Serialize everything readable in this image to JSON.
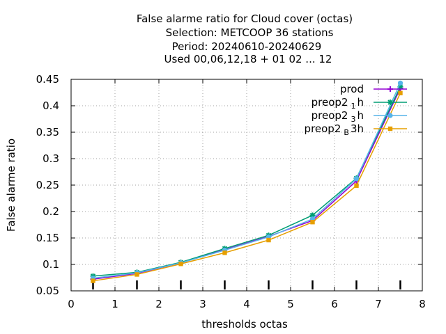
{
  "chart_data": {
    "type": "line",
    "title_lines": [
      "False alarme ratio  for Cloud cover (octas)",
      "Selection: METCOOP     36 stations",
      "Period: 20240610-20240629",
      "Used  00,06,12,18 + 01 02 ... 12"
    ],
    "xlabel": "thresholds octas",
    "ylabel": "False alarme ratio",
    "xlim": [
      0,
      8
    ],
    "ylim": [
      0.05,
      0.45
    ],
    "xticks": [
      0,
      1,
      2,
      3,
      4,
      5,
      6,
      7,
      8
    ],
    "xtick_labels": [
      "0",
      "1",
      "2",
      "3",
      "4",
      "5",
      "6",
      "7",
      "8"
    ],
    "yticks": [
      0.05,
      0.1,
      0.15,
      0.2,
      0.25,
      0.3,
      0.35,
      0.4,
      0.45
    ],
    "ytick_labels": [
      "0.05",
      "0.1",
      "0.15",
      "0.2",
      "0.25",
      "0.3",
      "0.35",
      "0.4",
      "0.45"
    ],
    "grid": true,
    "legend_position": "top-right",
    "threshold_markers": [
      0.5,
      1.5,
      2.5,
      3.5,
      4.5,
      5.5,
      6.5,
      7.5
    ],
    "x": [
      0.5,
      1.5,
      2.5,
      3.5,
      4.5,
      5.5,
      6.5,
      7.5
    ],
    "series": [
      {
        "name": "prod",
        "legend_base": "prod",
        "legend_sub": "",
        "legend_suffix": "",
        "color": "#9400d3",
        "marker": "plus",
        "values": [
          0.072,
          0.083,
          0.103,
          0.128,
          0.153,
          0.183,
          0.258,
          0.433
        ]
      },
      {
        "name": "preop2 1 h",
        "legend_base": "preop2",
        "legend_sub": "1",
        "legend_suffix": "h",
        "color": "#009e73",
        "marker": "star",
        "values": [
          0.078,
          0.085,
          0.104,
          0.13,
          0.155,
          0.193,
          0.263,
          0.436
        ]
      },
      {
        "name": "preop2 3 h",
        "legend_base": "preop2",
        "legend_sub": "3",
        "legend_suffix": "h",
        "color": "#56b4e9",
        "marker": "circle",
        "values": [
          0.074,
          0.084,
          0.103,
          0.127,
          0.152,
          0.186,
          0.262,
          0.443
        ]
      },
      {
        "name": "preop2 B 3h",
        "legend_base": "preop2",
        "legend_sub": "B",
        "legend_suffix": "3h",
        "color": "#e69f00",
        "marker": "square",
        "values": [
          0.069,
          0.081,
          0.101,
          0.122,
          0.146,
          0.18,
          0.249,
          0.424
        ]
      }
    ]
  }
}
